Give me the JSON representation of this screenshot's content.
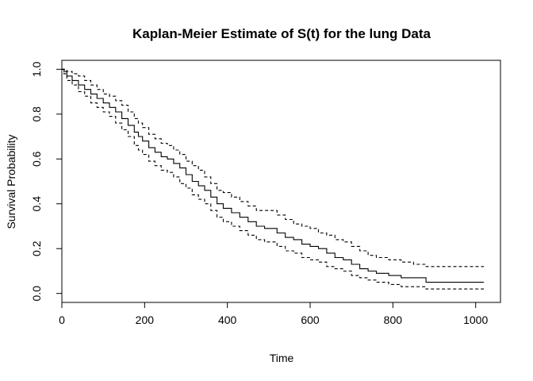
{
  "chart_data": {
    "type": "line",
    "title": "Kaplan-Meier Estimate of S(t) for the lung Data",
    "xlabel": "Time",
    "ylabel": "Survival Probability",
    "xlim": [
      0,
      1060
    ],
    "ylim": [
      -0.04,
      1.04
    ],
    "x_ticks": [
      0,
      200,
      400,
      600,
      800,
      1000
    ],
    "x_tick_labels": [
      "0",
      "200",
      "400",
      "600",
      "800",
      "1000"
    ],
    "y_ticks": [
      0.0,
      0.2,
      0.4,
      0.6,
      0.8,
      1.0
    ],
    "y_tick_labels": [
      "0.0",
      "0.2",
      "0.4",
      "0.6",
      "0.8",
      "1.0"
    ],
    "grid": false,
    "legend": "none",
    "colors": {
      "line": "#000000",
      "axis": "#000000"
    },
    "series": [
      {
        "style": "solid",
        "x": [
          0,
          5,
          12,
          25,
          40,
          55,
          70,
          85,
          100,
          115,
          130,
          145,
          160,
          175,
          185,
          195,
          210,
          225,
          240,
          255,
          270,
          285,
          300,
          315,
          330,
          345,
          360,
          375,
          390,
          410,
          430,
          450,
          470,
          490,
          520,
          540,
          560,
          580,
          600,
          620,
          640,
          660,
          680,
          700,
          720,
          740,
          760,
          790,
          820,
          850,
          880,
          1020
        ],
        "y": [
          1.0,
          0.99,
          0.97,
          0.95,
          0.93,
          0.91,
          0.89,
          0.87,
          0.85,
          0.83,
          0.81,
          0.78,
          0.75,
          0.72,
          0.7,
          0.68,
          0.65,
          0.63,
          0.61,
          0.6,
          0.58,
          0.56,
          0.53,
          0.5,
          0.48,
          0.46,
          0.43,
          0.4,
          0.38,
          0.36,
          0.34,
          0.32,
          0.3,
          0.29,
          0.27,
          0.25,
          0.24,
          0.22,
          0.21,
          0.2,
          0.18,
          0.16,
          0.15,
          0.13,
          0.11,
          0.1,
          0.09,
          0.08,
          0.07,
          0.07,
          0.05,
          0.05
        ]
      },
      {
        "style": "dashed",
        "x": [
          0,
          5,
          12,
          25,
          40,
          55,
          70,
          85,
          100,
          115,
          130,
          145,
          160,
          175,
          185,
          195,
          210,
          225,
          240,
          255,
          270,
          285,
          300,
          315,
          330,
          345,
          360,
          375,
          390,
          410,
          430,
          450,
          470,
          490,
          520,
          540,
          560,
          580,
          600,
          620,
          640,
          660,
          680,
          700,
          720,
          740,
          760,
          790,
          820,
          850,
          880,
          1020
        ],
        "y": [
          1.0,
          1.0,
          0.99,
          0.98,
          0.97,
          0.95,
          0.93,
          0.91,
          0.89,
          0.88,
          0.86,
          0.84,
          0.81,
          0.78,
          0.76,
          0.74,
          0.71,
          0.69,
          0.67,
          0.66,
          0.64,
          0.62,
          0.59,
          0.57,
          0.55,
          0.52,
          0.49,
          0.46,
          0.45,
          0.43,
          0.41,
          0.39,
          0.37,
          0.37,
          0.35,
          0.33,
          0.31,
          0.3,
          0.29,
          0.27,
          0.26,
          0.24,
          0.23,
          0.21,
          0.19,
          0.17,
          0.16,
          0.15,
          0.14,
          0.13,
          0.12,
          0.12
        ]
      },
      {
        "style": "dashed",
        "x": [
          0,
          5,
          12,
          25,
          40,
          55,
          70,
          85,
          100,
          115,
          130,
          145,
          160,
          175,
          185,
          195,
          210,
          225,
          240,
          255,
          270,
          285,
          300,
          315,
          330,
          345,
          360,
          375,
          390,
          410,
          430,
          450,
          470,
          490,
          520,
          540,
          560,
          580,
          600,
          620,
          640,
          660,
          680,
          700,
          720,
          740,
          760,
          790,
          820,
          850,
          880,
          1020
        ],
        "y": [
          1.0,
          0.98,
          0.95,
          0.93,
          0.9,
          0.88,
          0.85,
          0.83,
          0.81,
          0.79,
          0.76,
          0.73,
          0.7,
          0.66,
          0.64,
          0.62,
          0.59,
          0.57,
          0.55,
          0.54,
          0.52,
          0.49,
          0.47,
          0.44,
          0.42,
          0.4,
          0.37,
          0.34,
          0.32,
          0.3,
          0.28,
          0.26,
          0.24,
          0.23,
          0.21,
          0.19,
          0.18,
          0.16,
          0.15,
          0.14,
          0.12,
          0.11,
          0.1,
          0.08,
          0.07,
          0.06,
          0.05,
          0.04,
          0.03,
          0.03,
          0.02,
          0.02
        ]
      }
    ]
  }
}
